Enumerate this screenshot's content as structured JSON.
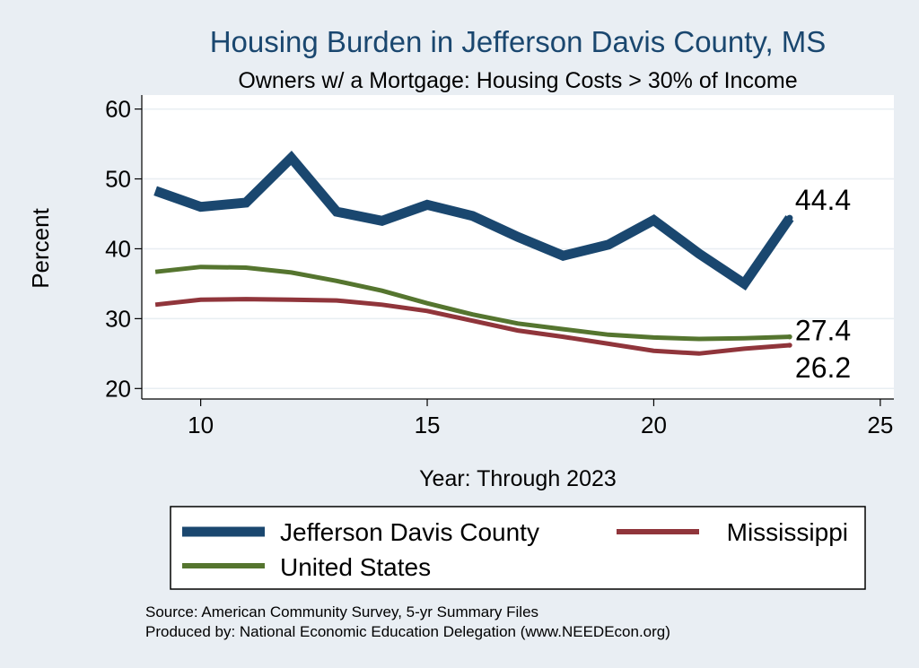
{
  "chart_data": {
    "type": "line",
    "title": "Housing Burden in Jefferson Davis County, MS",
    "subtitle": "Owners w/ a Mortgage: Housing Costs > 30% of Income",
    "xlabel": "Year: Through 2023",
    "ylabel": "Percent",
    "xlim": [
      8.7,
      25.3
    ],
    "ylim": [
      18.5,
      62
    ],
    "xticks": [
      10,
      15,
      20,
      25
    ],
    "yticks": [
      20,
      30,
      40,
      50,
      60
    ],
    "grid": true,
    "legend_placement": "bottom",
    "x": [
      9,
      10,
      11,
      12,
      13,
      14,
      15,
      16,
      17,
      18,
      19,
      20,
      21,
      22,
      23
    ],
    "series": [
      {
        "name": "Jefferson Davis County",
        "color": "#1a476f",
        "values": [
          48.3,
          46.0,
          46.6,
          53.0,
          45.3,
          44.0,
          46.3,
          44.7,
          41.7,
          39.0,
          40.6,
          44.1,
          39.3,
          35.0,
          44.4
        ],
        "end_label": "44.4"
      },
      {
        "name": "Mississippi",
        "color": "#90353b",
        "values": [
          32.0,
          32.7,
          32.8,
          32.7,
          32.6,
          32.0,
          31.1,
          29.7,
          28.3,
          27.4,
          26.4,
          25.4,
          25.0,
          25.7,
          26.2
        ],
        "end_label": "26.2"
      },
      {
        "name": "United States",
        "color": "#55752f",
        "values": [
          36.7,
          37.4,
          37.3,
          36.6,
          35.4,
          34.0,
          32.2,
          30.6,
          29.3,
          28.5,
          27.7,
          27.3,
          27.1,
          27.2,
          27.4
        ],
        "end_label": "27.4"
      }
    ]
  },
  "notes": {
    "source": "Source: American Community Survey, 5-yr Summary Files",
    "produced": "Produced by: National Economic Education Delegation (www.NEEDEcon.org)"
  }
}
